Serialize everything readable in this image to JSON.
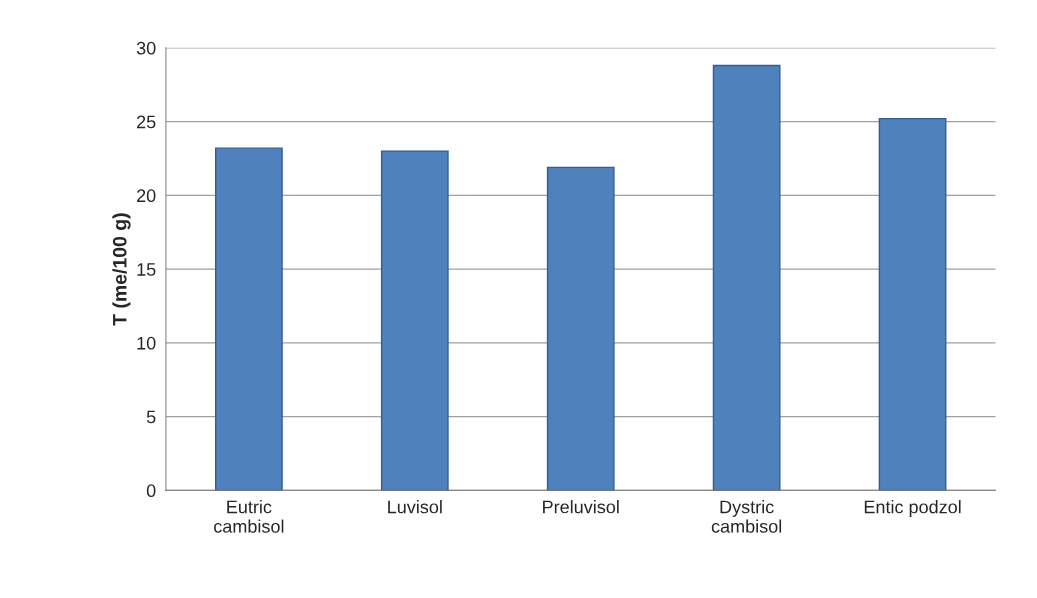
{
  "chart_data": {
    "type": "bar",
    "ylabel": "T (me/100 g)",
    "categories": [
      "Eutric\ncambisol",
      "Luvisol",
      "Preluvisol",
      "Dystric\ncambisol",
      "Entic podzol"
    ],
    "values": [
      23.2,
      23.0,
      21.9,
      28.8,
      25.2
    ],
    "color": "#4f81bd",
    "ylim": [
      0,
      30
    ],
    "yticks": [
      0,
      5,
      10,
      15,
      20,
      25,
      30
    ],
    "grid": "y"
  }
}
